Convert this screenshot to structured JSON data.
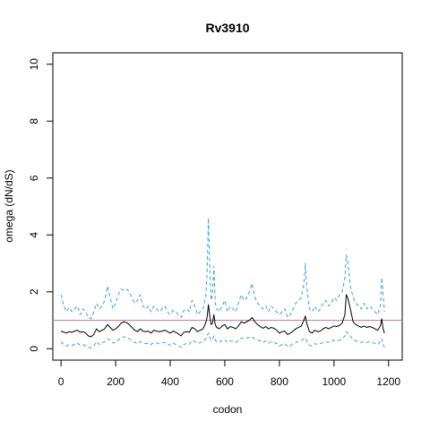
{
  "chart_data": {
    "type": "line",
    "title": "Rv3910",
    "xlabel": "codon",
    "ylabel": "omega (dN/dS)",
    "xlim": [
      0,
      1200
    ],
    "ylim": [
      0,
      10
    ],
    "xticks": [
      0,
      200,
      400,
      600,
      800,
      1000,
      1200
    ],
    "yticks": [
      0,
      2,
      4,
      6,
      8,
      10
    ],
    "reference_line": {
      "y": 1,
      "color": "#cc79a7"
    },
    "colors": {
      "mean": "#000000",
      "bounds": "#3a9fe0",
      "reference": "#cc79a7"
    },
    "series": [
      {
        "role": "upper",
        "style": "dashed",
        "x": [
          0,
          10,
          20,
          30,
          40,
          50,
          60,
          70,
          80,
          90,
          100,
          110,
          120,
          130,
          140,
          150,
          160,
          170,
          180,
          190,
          200,
          210,
          220,
          230,
          240,
          250,
          260,
          270,
          280,
          290,
          300,
          310,
          320,
          330,
          340,
          350,
          360,
          370,
          380,
          390,
          400,
          410,
          420,
          430,
          440,
          450,
          460,
          470,
          480,
          490,
          500,
          510,
          520,
          530,
          535,
          540,
          545,
          550,
          555,
          560,
          565,
          570,
          580,
          590,
          600,
          610,
          620,
          630,
          640,
          650,
          660,
          670,
          680,
          690,
          700,
          710,
          720,
          730,
          740,
          750,
          760,
          770,
          780,
          790,
          800,
          810,
          820,
          830,
          840,
          850,
          860,
          870,
          880,
          890,
          895,
          900,
          910,
          920,
          930,
          940,
          950,
          960,
          970,
          980,
          990,
          1000,
          1010,
          1020,
          1030,
          1040,
          1045,
          1050,
          1060,
          1070,
          1080,
          1090,
          1100,
          1110,
          1120,
          1130,
          1140,
          1150,
          1160,
          1170,
          1175,
          1180,
          1185
        ],
        "y": [
          1.9,
          1.5,
          1.3,
          1.45,
          1.3,
          1.4,
          1.5,
          1.2,
          1.4,
          1.3,
          1.1,
          1.05,
          1.3,
          1.6,
          1.4,
          1.5,
          1.7,
          2.2,
          1.8,
          1.4,
          1.6,
          1.9,
          2.1,
          2.05,
          2.1,
          2.0,
          1.8,
          1.6,
          1.7,
          1.9,
          1.5,
          1.4,
          1.5,
          1.3,
          1.5,
          1.4,
          1.3,
          1.4,
          1.5,
          1.3,
          1.2,
          1.35,
          1.3,
          1.2,
          1.1,
          1.35,
          1.4,
          1.3,
          1.7,
          1.5,
          1.2,
          1.3,
          1.4,
          1.8,
          2.6,
          4.6,
          2.8,
          1.7,
          1.9,
          2.9,
          1.6,
          1.4,
          1.3,
          1.5,
          1.7,
          1.3,
          1.5,
          1.4,
          1.3,
          1.6,
          1.9,
          1.7,
          1.8,
          2.0,
          2.3,
          1.8,
          1.6,
          1.5,
          1.4,
          1.5,
          1.3,
          1.5,
          1.4,
          1.3,
          1.2,
          1.3,
          1.4,
          1.1,
          1.2,
          1.4,
          1.6,
          1.7,
          1.8,
          2.3,
          3.0,
          2.2,
          1.4,
          1.3,
          1.5,
          1.3,
          1.4,
          1.6,
          1.7,
          1.5,
          1.6,
          1.8,
          1.7,
          1.9,
          2.0,
          2.5,
          3.3,
          3.1,
          2.2,
          1.8,
          1.6,
          1.5,
          1.4,
          1.6,
          1.4,
          1.5,
          1.4,
          1.3,
          1.2,
          1.5,
          2.5,
          1.9,
          1.3
        ]
      },
      {
        "role": "mean",
        "style": "solid",
        "x": [
          0,
          10,
          20,
          30,
          40,
          50,
          60,
          70,
          80,
          90,
          100,
          110,
          120,
          130,
          140,
          150,
          160,
          170,
          180,
          190,
          200,
          210,
          220,
          230,
          240,
          250,
          260,
          270,
          280,
          290,
          300,
          310,
          320,
          330,
          340,
          350,
          360,
          370,
          380,
          390,
          400,
          410,
          420,
          430,
          440,
          450,
          460,
          470,
          480,
          490,
          500,
          510,
          520,
          530,
          535,
          540,
          545,
          550,
          555,
          560,
          565,
          570,
          580,
          590,
          600,
          610,
          620,
          630,
          640,
          650,
          660,
          670,
          680,
          690,
          700,
          710,
          720,
          730,
          740,
          750,
          760,
          770,
          780,
          790,
          800,
          810,
          820,
          830,
          840,
          850,
          860,
          870,
          880,
          890,
          895,
          900,
          910,
          920,
          930,
          940,
          950,
          960,
          970,
          980,
          990,
          1000,
          1010,
          1020,
          1030,
          1040,
          1045,
          1050,
          1060,
          1070,
          1080,
          1090,
          1100,
          1110,
          1120,
          1130,
          1140,
          1150,
          1160,
          1170,
          1175,
          1180,
          1185
        ],
        "y": [
          0.62,
          0.58,
          0.55,
          0.6,
          0.58,
          0.62,
          0.65,
          0.58,
          0.6,
          0.55,
          0.45,
          0.42,
          0.5,
          0.7,
          0.6,
          0.65,
          0.7,
          0.85,
          0.75,
          0.65,
          0.7,
          0.78,
          0.9,
          0.95,
          0.92,
          0.85,
          0.75,
          0.65,
          0.6,
          0.7,
          0.62,
          0.6,
          0.62,
          0.55,
          0.65,
          0.62,
          0.6,
          0.62,
          0.65,
          0.6,
          0.55,
          0.62,
          0.58,
          0.52,
          0.45,
          0.58,
          0.6,
          0.58,
          0.75,
          0.7,
          0.6,
          0.65,
          0.7,
          0.9,
          1.1,
          1.55,
          1.15,
          0.85,
          0.9,
          1.2,
          0.85,
          0.75,
          0.7,
          0.8,
          0.85,
          0.7,
          0.78,
          0.75,
          0.7,
          0.8,
          0.95,
          0.9,
          0.95,
          1.0,
          1.1,
          0.95,
          0.85,
          0.78,
          0.72,
          0.78,
          0.7,
          0.75,
          0.72,
          0.65,
          0.55,
          0.6,
          0.62,
          0.5,
          0.55,
          0.62,
          0.7,
          0.75,
          0.8,
          1.0,
          1.15,
          0.9,
          0.6,
          0.55,
          0.65,
          0.6,
          0.62,
          0.7,
          0.75,
          0.7,
          0.75,
          0.8,
          0.78,
          0.82,
          0.9,
          1.2,
          1.9,
          1.8,
          1.4,
          0.95,
          0.85,
          0.8,
          0.75,
          0.8,
          0.75,
          0.78,
          0.75,
          0.7,
          0.65,
          0.8,
          1.05,
          0.7,
          0.55
        ]
      },
      {
        "role": "lower",
        "style": "dashed",
        "x": [
          0,
          10,
          20,
          30,
          40,
          50,
          60,
          70,
          80,
          90,
          100,
          110,
          120,
          130,
          140,
          150,
          160,
          170,
          180,
          190,
          200,
          210,
          220,
          230,
          240,
          250,
          260,
          270,
          280,
          290,
          300,
          310,
          320,
          330,
          340,
          350,
          360,
          370,
          380,
          390,
          400,
          410,
          420,
          430,
          440,
          450,
          460,
          470,
          480,
          490,
          500,
          510,
          520,
          530,
          535,
          540,
          545,
          550,
          555,
          560,
          565,
          570,
          580,
          590,
          600,
          610,
          620,
          630,
          640,
          650,
          660,
          670,
          680,
          690,
          700,
          710,
          720,
          730,
          740,
          750,
          760,
          770,
          780,
          790,
          800,
          810,
          820,
          830,
          840,
          850,
          860,
          870,
          880,
          890,
          895,
          900,
          910,
          920,
          930,
          940,
          950,
          960,
          970,
          980,
          990,
          1000,
          1010,
          1020,
          1030,
          1040,
          1045,
          1050,
          1060,
          1070,
          1080,
          1090,
          1100,
          1110,
          1120,
          1130,
          1140,
          1150,
          1160,
          1170,
          1175,
          1180,
          1185
        ],
        "y": [
          0.25,
          0.15,
          0.1,
          0.15,
          0.12,
          0.15,
          0.2,
          0.12,
          0.15,
          0.1,
          0.05,
          0.03,
          0.1,
          0.25,
          0.15,
          0.2,
          0.25,
          0.35,
          0.3,
          0.2,
          0.22,
          0.3,
          0.4,
          0.42,
          0.4,
          0.35,
          0.3,
          0.22,
          0.18,
          0.25,
          0.2,
          0.18,
          0.2,
          0.15,
          0.22,
          0.2,
          0.18,
          0.2,
          0.22,
          0.18,
          0.12,
          0.2,
          0.15,
          0.1,
          0.05,
          0.15,
          0.18,
          0.15,
          0.3,
          0.25,
          0.18,
          0.22,
          0.25,
          0.35,
          0.45,
          0.55,
          0.4,
          0.3,
          0.32,
          0.45,
          0.3,
          0.25,
          0.22,
          0.3,
          0.32,
          0.22,
          0.28,
          0.25,
          0.22,
          0.3,
          0.38,
          0.35,
          0.38,
          0.4,
          0.42,
          0.35,
          0.3,
          0.28,
          0.22,
          0.28,
          0.2,
          0.25,
          0.22,
          0.18,
          0.1,
          0.15,
          0.18,
          0.08,
          0.1,
          0.18,
          0.22,
          0.25,
          0.28,
          0.35,
          0.38,
          0.28,
          0.12,
          0.1,
          0.18,
          0.15,
          0.18,
          0.22,
          0.25,
          0.22,
          0.25,
          0.3,
          0.28,
          0.3,
          0.35,
          0.45,
          0.6,
          0.55,
          0.45,
          0.32,
          0.28,
          0.25,
          0.22,
          0.25,
          0.22,
          0.25,
          0.22,
          0.18,
          0.15,
          0.25,
          0.35,
          0.15,
          0.05
        ]
      }
    ]
  }
}
